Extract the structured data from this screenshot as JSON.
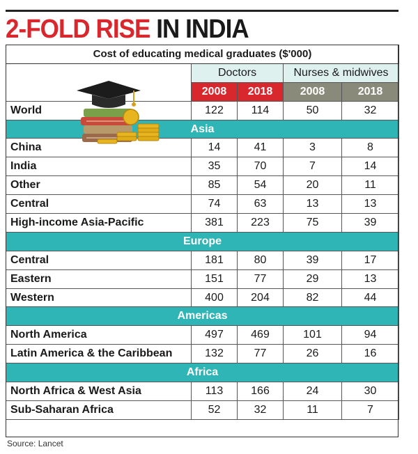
{
  "headline": {
    "part1": "2-FOLD RISE",
    "part2": " IN INDIA"
  },
  "subtitle": "Cost of educating medical graduates ($'000)",
  "groups": {
    "doctors": "Doctors",
    "nurses": "Nurses & midwives"
  },
  "years": [
    "2008",
    "2018",
    "2008",
    "2018"
  ],
  "source": "Source: Lancet",
  "colors": {
    "red": "#d9272e",
    "teal": "#2fb5b5",
    "pale_teal": "#dff1ef",
    "grey": "#8a8a7a"
  },
  "icons": [
    "graduation-cap-icon",
    "books-icon",
    "coins-icon"
  ],
  "chart_data": {
    "type": "table",
    "title": "2-FOLD RISE IN INDIA",
    "subtitle": "Cost of educating medical graduates ($'000)",
    "columns": [
      "Doctors 2008",
      "Doctors 2018",
      "Nurses & midwives 2008",
      "Nurses & midwives 2018"
    ],
    "rows": [
      {
        "label": "World",
        "values": [
          "122",
          "114",
          "50",
          "32"
        ]
      },
      {
        "section": "Asia"
      },
      {
        "label": "China",
        "values": [
          "14",
          "41",
          "3",
          "8"
        ]
      },
      {
        "label": "India",
        "values": [
          "35",
          "70",
          "7",
          "14"
        ]
      },
      {
        "label": "Other",
        "values": [
          "85",
          "54",
          "20",
          "11"
        ]
      },
      {
        "label": "Central",
        "values": [
          "74",
          "63",
          "13",
          "13"
        ]
      },
      {
        "label": "High-income Asia-Pacific",
        "values": [
          "381",
          "223",
          "75",
          "39"
        ]
      },
      {
        "section": "Europe"
      },
      {
        "label": "Central",
        "values": [
          "181",
          "80",
          "39",
          "17"
        ]
      },
      {
        "label": "Eastern",
        "values": [
          "151",
          "77",
          "29",
          "13"
        ]
      },
      {
        "label": "Western",
        "values": [
          "400",
          "204",
          "82",
          "44"
        ]
      },
      {
        "section": "Americas"
      },
      {
        "label": "North America",
        "values": [
          "497",
          "469",
          "101",
          "94"
        ]
      },
      {
        "label": "Latin America & the Caribbean",
        "values": [
          "132",
          "77",
          "26",
          "16"
        ]
      },
      {
        "section": "Africa"
      },
      {
        "label": "North Africa & West Asia",
        "values": [
          "113",
          "166",
          "24",
          "30"
        ]
      },
      {
        "label": "Sub-Saharan Africa",
        "values": [
          "52",
          "32",
          "11",
          "7"
        ]
      }
    ]
  }
}
